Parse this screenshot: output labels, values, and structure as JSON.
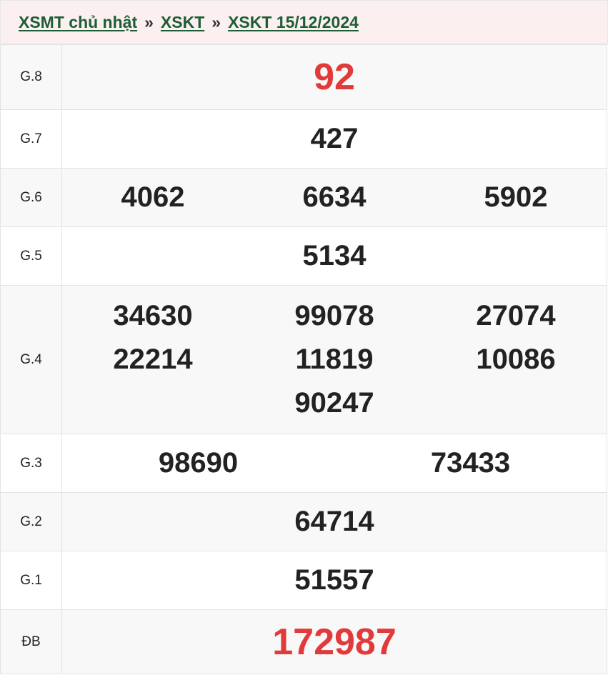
{
  "breadcrumb": [
    {
      "label": "XSMT chủ nhật"
    },
    {
      "label": "XSKT"
    },
    {
      "label": "XSKT 15/12/2024"
    }
  ],
  "separator": "»",
  "colors": {
    "link": "#1d5e36",
    "highlight": "#e23a3a",
    "header_bg": "#fcefef"
  },
  "prizes": [
    {
      "label": "G.8",
      "numbers": [
        "92"
      ]
    },
    {
      "label": "G.7",
      "numbers": [
        "427"
      ]
    },
    {
      "label": "G.6",
      "numbers": [
        "4062",
        "6634",
        "5902"
      ]
    },
    {
      "label": "G.5",
      "numbers": [
        "5134"
      ]
    },
    {
      "label": "G.4",
      "numbers": [
        "34630",
        "99078",
        "27074",
        "22214",
        "11819",
        "10086",
        "90247"
      ]
    },
    {
      "label": "G.3",
      "numbers": [
        "98690",
        "73433"
      ]
    },
    {
      "label": "G.2",
      "numbers": [
        "64714"
      ]
    },
    {
      "label": "G.1",
      "numbers": [
        "51557"
      ]
    },
    {
      "label": "ĐB",
      "numbers": [
        "172987"
      ]
    }
  ]
}
